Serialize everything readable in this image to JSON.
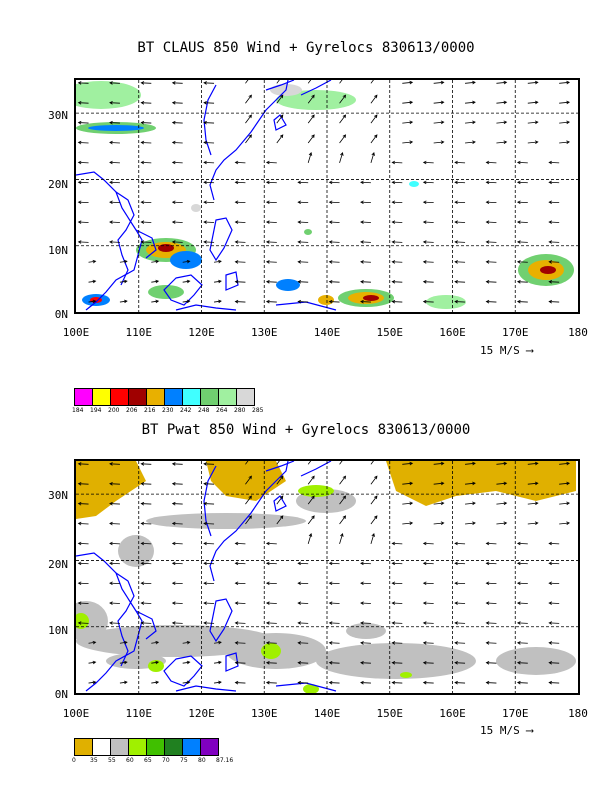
{
  "panels": [
    {
      "title": "BT CLAUS 850 Wind + Gyrelocs 830613/0000",
      "y_labels": [
        "30N",
        "20N",
        "10N",
        "0N"
      ],
      "x_labels": [
        "100E",
        "110E",
        "120E",
        "130E",
        "140E",
        "150E",
        "160E",
        "170E",
        "180"
      ],
      "scale_label": "15 M/S",
      "legend_colors": [
        "#ff00ff",
        "#ffff00",
        "#ff0000",
        "#a00000",
        "#e8b000",
        "#0080ff",
        "#40ffff",
        "#70d070",
        "#a0f0a0",
        "#d8d8d8"
      ],
      "legend_labels": [
        "184",
        "194",
        "200",
        "206",
        "216",
        "230",
        "242",
        "248",
        "264",
        "280",
        "285"
      ]
    },
    {
      "title": "BT Pwat 850 Wind + Gyrelocs 830613/0000",
      "y_labels": [
        "30N",
        "20N",
        "10N",
        "0N"
      ],
      "x_labels": [
        "100E",
        "110E",
        "120E",
        "130E",
        "140E",
        "150E",
        "160E",
        "170E",
        "180"
      ],
      "scale_label": "15 M/S",
      "legend_colors": [
        "#e0b000",
        "#ffffff",
        "#c0c0c0",
        "#a0f000",
        "#40c000",
        "#208020",
        "#0080ff",
        "#8000c0"
      ],
      "legend_labels": [
        "0",
        "35",
        "55",
        "60",
        "65",
        "70",
        "75",
        "80",
        "87.16"
      ]
    }
  ],
  "map_extent": {
    "lon": [
      100,
      180
    ],
    "lat": [
      0,
      35
    ]
  }
}
